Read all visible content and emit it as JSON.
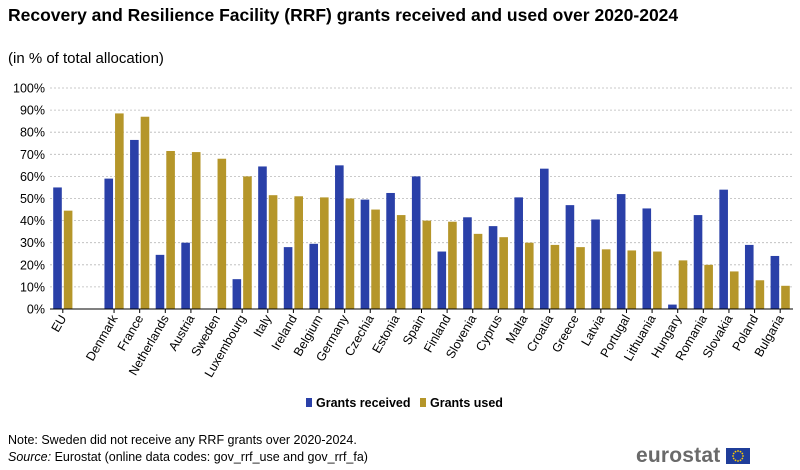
{
  "header": {
    "title": "Recovery and Resilience Facility (RRF) grants received and used over 2020-2024",
    "subtitle": "(in % of total allocation)"
  },
  "footer": {
    "note": "Note: Sweden did not receive any RRF grants over 2020-2024.",
    "source_label": "Source:",
    "source_text": "Eurostat (online data codes: gov_rrf_use and gov_rrf_fa)"
  },
  "logo": {
    "text": "eurostat",
    "icon": "eu-flag-icon"
  },
  "colors": {
    "received": "#2a40a8",
    "used": "#b5962a",
    "grid": "#b8b8b8",
    "axis": "#000000"
  },
  "chart_data": {
    "type": "bar",
    "title": "Recovery and Resilience Facility (RRF) grants received and used over 2020-2024",
    "subtitle": "(in % of total allocation)",
    "xlabel": "",
    "ylabel": "",
    "ylim": [
      0,
      100
    ],
    "yticks": [
      "0%",
      "10%",
      "20%",
      "30%",
      "40%",
      "50%",
      "60%",
      "70%",
      "80%",
      "90%",
      "100%"
    ],
    "grid": true,
    "legend_position": "bottom-center",
    "categories": [
      "EU",
      "Denmark",
      "France",
      "Netherlands",
      "Austria",
      "Sweden",
      "Luxembourg",
      "Italy",
      "Ireland",
      "Belgium",
      "Germany",
      "Czechia",
      "Estonia",
      "Spain",
      "Finland",
      "Slovenia",
      "Cyprus",
      "Malta",
      "Croatia",
      "Greece",
      "Latvia",
      "Portugal",
      "Lithuania",
      "Hungary",
      "Romania",
      "Slovakia",
      "Poland",
      "Bulgaria"
    ],
    "series": [
      {
        "name": "Grants received",
        "values": [
          55,
          59,
          76.5,
          24.5,
          30,
          0,
          13.5,
          64.5,
          28,
          29.5,
          65,
          49.5,
          52.5,
          60,
          26,
          41.5,
          37.5,
          50.5,
          63.5,
          47,
          40.5,
          52,
          45.5,
          2,
          42.5,
          54,
          29,
          24
        ]
      },
      {
        "name": "Grants used",
        "values": [
          44.5,
          88.5,
          87,
          71.5,
          71,
          68,
          60,
          51.5,
          51,
          50.5,
          50,
          45,
          42.5,
          40,
          39.5,
          34,
          32.5,
          30,
          29,
          28,
          27,
          26.5,
          26,
          22,
          20,
          17,
          13,
          10.5
        ]
      }
    ]
  }
}
